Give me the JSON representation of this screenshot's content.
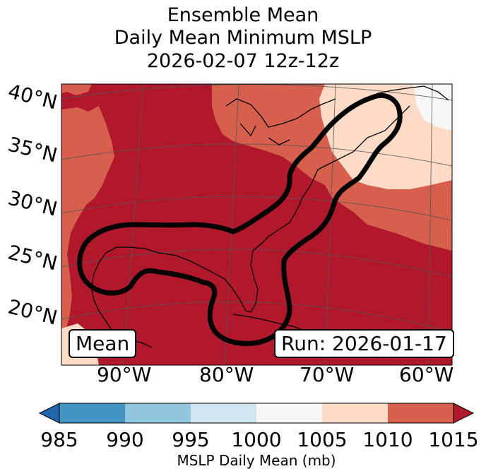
{
  "title": {
    "line1": "Ensemble Mean",
    "line2": "Daily Mean Minimum MSLP",
    "line3": "2026-02-07 12z-12z"
  },
  "map": {
    "lat_labels": [
      "40°N",
      "35°N",
      "30°N",
      "25°N",
      "20°N"
    ],
    "lon_labels": [
      "90°W",
      "80°W",
      "70°W",
      "60°W"
    ],
    "mean_box": "Mean",
    "run_box": "Run: 2026-01-17",
    "fill_colors": {
      "c1015": "#b2182b",
      "c1010": "#d6604d",
      "c1005": "#fddbc7",
      "c1000": "#f7f7f7"
    },
    "contour_color": "#000000"
  },
  "colorbar": {
    "ticks": [
      "985",
      "990",
      "995",
      "1000",
      "1005",
      "1010",
      "1015"
    ],
    "label": "MSLP Daily Mean (mb)",
    "colors": [
      "#2166ac",
      "#4393c3",
      "#92c5de",
      "#d1e5f0",
      "#f7f7f7",
      "#fddbc7",
      "#d6604d",
      "#b2182b"
    ]
  }
}
